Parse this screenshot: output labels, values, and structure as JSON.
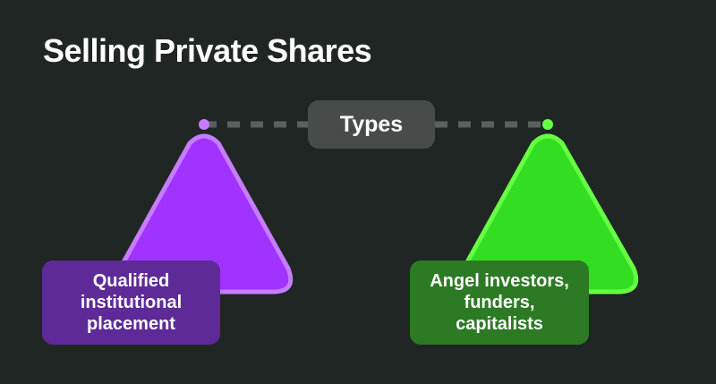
{
  "title": "Selling Private Shares",
  "center_label": "Types",
  "branches": [
    {
      "label": "Qualified\ninstitutional\nplacement",
      "color": "#a033ff",
      "stroke": "#c77dff",
      "box_color": "#5d2a97"
    },
    {
      "label": "Angel investors,\nfunders,\ncapitalists",
      "color": "#33dd22",
      "stroke": "#66ff44",
      "box_color": "#2d7a24"
    }
  ],
  "connector_color": "#5c605e",
  "background": "#202624"
}
